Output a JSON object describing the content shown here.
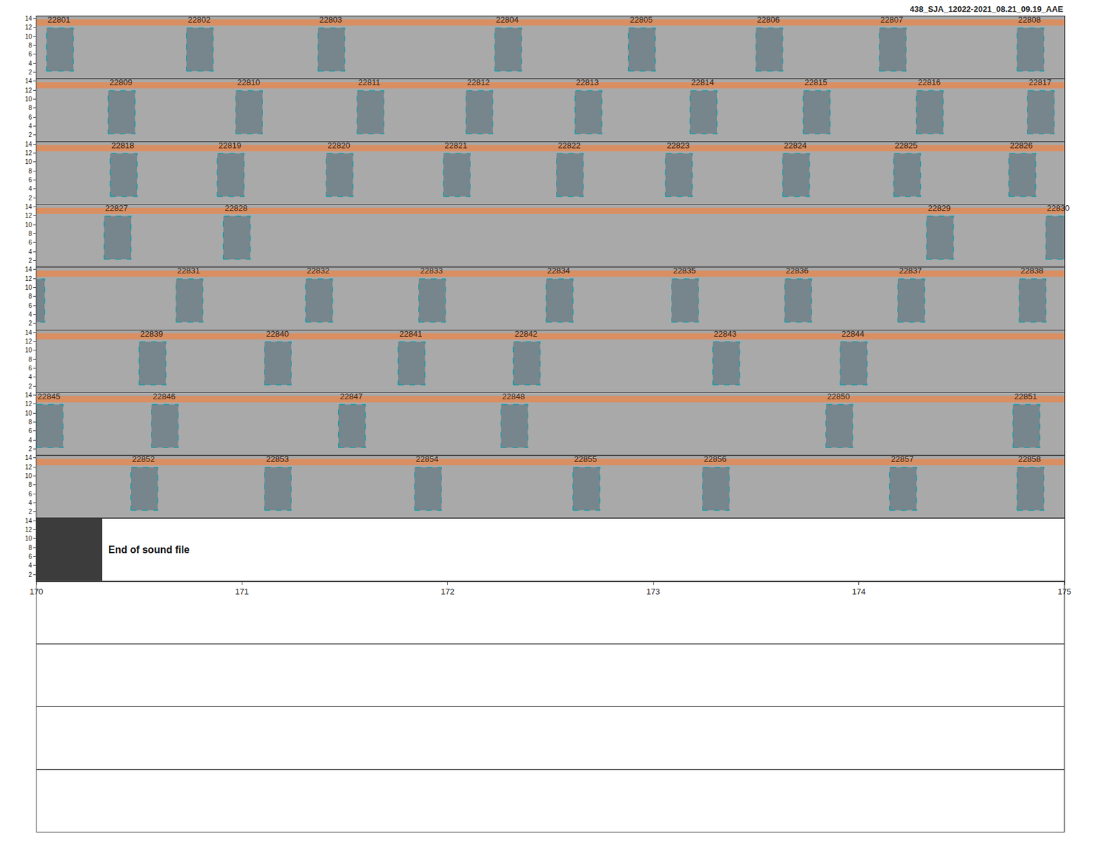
{
  "chart_data": {
    "type": "spectrogram",
    "title": "438_SJA_12022-2021_08.21_09.19_AAE",
    "ylim": [
      0.5,
      14.5
    ],
    "yticks": [
      2,
      4,
      6,
      8,
      10,
      12,
      14
    ],
    "band": [
      12.4,
      13.8
    ],
    "rows": [
      {
        "xlim": [
          130,
          135
        ]
      },
      {
        "xlim": [
          135,
          140
        ]
      },
      {
        "xlim": [
          140,
          145
        ]
      },
      {
        "xlim": [
          145,
          150
        ]
      },
      {
        "xlim": [
          150,
          155
        ]
      },
      {
        "xlim": [
          155,
          160
        ]
      },
      {
        "xlim": [
          160,
          165
        ]
      },
      {
        "xlim": [
          165,
          170
        ]
      },
      {
        "xlim": [
          170,
          175
        ],
        "xticks": [
          170,
          171,
          172,
          173,
          174,
          175
        ],
        "file_end": 170.32,
        "end_label": "End of sound file"
      }
    ],
    "detections": [
      {
        "id": "22801",
        "start": 130.05,
        "end": 130.18,
        "low": 2.3,
        "high": 11.9
      },
      {
        "id": "22802",
        "start": 130.73,
        "end": 130.86,
        "low": 2.3,
        "high": 11.9
      },
      {
        "id": "22803",
        "start": 131.37,
        "end": 131.5,
        "low": 2.3,
        "high": 11.9
      },
      {
        "id": "22804",
        "start": 132.23,
        "end": 132.36,
        "low": 2.3,
        "high": 11.9
      },
      {
        "id": "22805",
        "start": 132.88,
        "end": 133.01,
        "low": 2.3,
        "high": 11.9
      },
      {
        "id": "22806",
        "start": 133.5,
        "end": 133.63,
        "low": 2.3,
        "high": 11.9
      },
      {
        "id": "22807",
        "start": 134.1,
        "end": 134.23,
        "low": 2.3,
        "high": 11.9
      },
      {
        "id": "22808",
        "start": 134.77,
        "end": 134.9,
        "low": 2.3,
        "high": 11.9
      },
      {
        "id": "22809",
        "start": 135.35,
        "end": 135.48,
        "low": 2.3,
        "high": 11.9
      },
      {
        "id": "22810",
        "start": 135.97,
        "end": 136.1,
        "low": 2.3,
        "high": 11.9
      },
      {
        "id": "22811",
        "start": 136.56,
        "end": 136.69,
        "low": 2.3,
        "high": 11.9
      },
      {
        "id": "22812",
        "start": 137.09,
        "end": 137.22,
        "low": 2.3,
        "high": 11.9
      },
      {
        "id": "22813",
        "start": 137.62,
        "end": 137.75,
        "low": 2.3,
        "high": 11.9
      },
      {
        "id": "22814",
        "start": 138.18,
        "end": 138.31,
        "low": 2.3,
        "high": 11.9
      },
      {
        "id": "22815",
        "start": 138.73,
        "end": 138.86,
        "low": 2.3,
        "high": 11.9
      },
      {
        "id": "22816",
        "start": 139.28,
        "end": 139.41,
        "low": 2.3,
        "high": 11.9
      },
      {
        "id": "22817",
        "start": 139.82,
        "end": 139.95,
        "low": 2.3,
        "high": 11.9
      },
      {
        "id": "22818",
        "start": 140.36,
        "end": 140.49,
        "low": 2.3,
        "high": 11.9
      },
      {
        "id": "22819",
        "start": 140.88,
        "end": 141.01,
        "low": 2.3,
        "high": 11.9
      },
      {
        "id": "22820",
        "start": 141.41,
        "end": 141.54,
        "low": 2.3,
        "high": 11.9
      },
      {
        "id": "22821",
        "start": 141.98,
        "end": 142.11,
        "low": 2.3,
        "high": 11.9
      },
      {
        "id": "22822",
        "start": 142.53,
        "end": 142.66,
        "low": 2.3,
        "high": 11.9
      },
      {
        "id": "22823",
        "start": 143.06,
        "end": 143.19,
        "low": 2.3,
        "high": 11.9
      },
      {
        "id": "22824",
        "start": 143.63,
        "end": 143.76,
        "low": 2.3,
        "high": 11.9
      },
      {
        "id": "22825",
        "start": 144.17,
        "end": 144.3,
        "low": 2.3,
        "high": 11.9
      },
      {
        "id": "22826",
        "start": 144.73,
        "end": 144.86,
        "low": 2.3,
        "high": 11.9
      },
      {
        "id": "22827",
        "start": 145.33,
        "end": 145.46,
        "low": 2.3,
        "high": 11.9
      },
      {
        "id": "22828",
        "start": 145.91,
        "end": 146.04,
        "low": 2.3,
        "high": 11.9
      },
      {
        "id": "22829",
        "start": 149.33,
        "end": 149.46,
        "low": 2.3,
        "high": 11.9
      },
      {
        "id": "22830",
        "start": 149.91,
        "end": 150.04,
        "low": 2.3,
        "high": 11.9
      },
      {
        "id": "22831",
        "start": 150.68,
        "end": 150.81,
        "low": 2.3,
        "high": 11.9
      },
      {
        "id": "22832",
        "start": 151.31,
        "end": 151.44,
        "low": 2.3,
        "high": 11.9
      },
      {
        "id": "22833",
        "start": 151.86,
        "end": 151.99,
        "low": 2.3,
        "high": 11.9
      },
      {
        "id": "22834",
        "start": 152.48,
        "end": 152.61,
        "low": 2.3,
        "high": 11.9
      },
      {
        "id": "22835",
        "start": 153.09,
        "end": 153.22,
        "low": 2.3,
        "high": 11.9
      },
      {
        "id": "22836",
        "start": 153.64,
        "end": 153.77,
        "low": 2.3,
        "high": 11.9
      },
      {
        "id": "22837",
        "start": 154.19,
        "end": 154.32,
        "low": 2.3,
        "high": 11.9
      },
      {
        "id": "22838",
        "start": 154.78,
        "end": 154.91,
        "low": 2.3,
        "high": 11.9
      },
      {
        "id": "22839",
        "start": 155.5,
        "end": 155.63,
        "low": 2.3,
        "high": 11.9
      },
      {
        "id": "22840",
        "start": 156.11,
        "end": 156.24,
        "low": 2.3,
        "high": 11.9
      },
      {
        "id": "22841",
        "start": 156.76,
        "end": 156.89,
        "low": 2.3,
        "high": 11.9
      },
      {
        "id": "22842",
        "start": 157.32,
        "end": 157.45,
        "low": 2.3,
        "high": 11.9
      },
      {
        "id": "22843",
        "start": 158.29,
        "end": 158.42,
        "low": 2.3,
        "high": 11.9
      },
      {
        "id": "22844",
        "start": 158.91,
        "end": 159.04,
        "low": 2.3,
        "high": 11.9
      },
      {
        "id": "22845",
        "start": 160.0,
        "end": 160.13,
        "low": 2.3,
        "high": 11.9
      },
      {
        "id": "22846",
        "start": 160.56,
        "end": 160.69,
        "low": 2.3,
        "high": 11.9
      },
      {
        "id": "22847",
        "start": 161.47,
        "end": 161.6,
        "low": 2.3,
        "high": 11.9
      },
      {
        "id": "22848",
        "start": 162.26,
        "end": 162.39,
        "low": 2.3,
        "high": 11.9
      },
      {
        "id": "22850",
        "start": 163.84,
        "end": 163.97,
        "low": 2.3,
        "high": 11.9
      },
      {
        "id": "22851",
        "start": 164.75,
        "end": 164.88,
        "low": 2.3,
        "high": 11.9
      },
      {
        "id": "22852",
        "start": 165.46,
        "end": 165.59,
        "low": 2.3,
        "high": 11.9
      },
      {
        "id": "22853",
        "start": 166.11,
        "end": 166.24,
        "low": 2.3,
        "high": 11.9
      },
      {
        "id": "22854",
        "start": 166.84,
        "end": 166.97,
        "low": 2.3,
        "high": 11.9
      },
      {
        "id": "22855",
        "start": 167.61,
        "end": 167.74,
        "low": 2.3,
        "high": 11.9
      },
      {
        "id": "22856",
        "start": 168.24,
        "end": 168.37,
        "low": 2.3,
        "high": 11.9
      },
      {
        "id": "22857",
        "start": 169.15,
        "end": 169.28,
        "low": 2.3,
        "high": 11.9
      },
      {
        "id": "22858",
        "start": 169.77,
        "end": 169.9,
        "low": 2.3,
        "high": 11.9
      }
    ]
  }
}
